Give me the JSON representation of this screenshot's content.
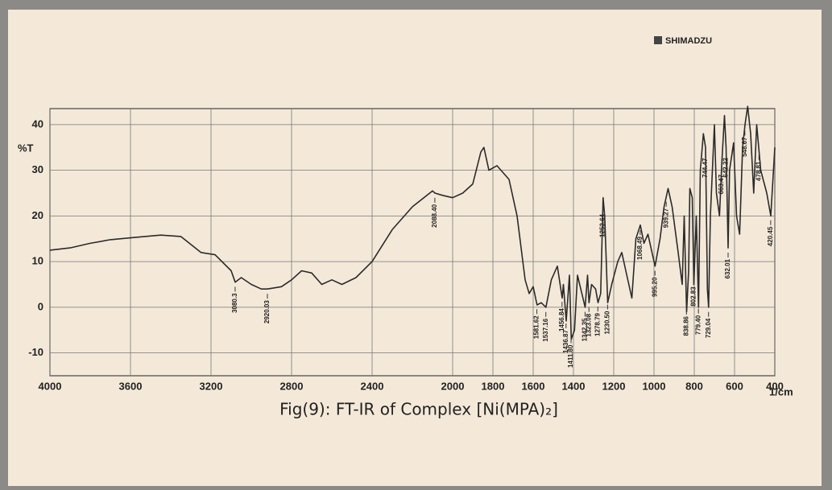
{
  "chart_data": {
    "type": "line",
    "brand": "SHIMADZU",
    "ylabel": "%T",
    "xlabel": "1/cm",
    "caption": "Fig(9): FT-IR of Complex [Ni(MPA)₂]",
    "color": "#2b2b2b",
    "grid": true,
    "xlim": [
      4000,
      400
    ],
    "ylim": [
      -15,
      43.5
    ],
    "xticks": [
      4000,
      3600,
      3200,
      2800,
      2400,
      2000,
      1800,
      1600,
      1400,
      1200,
      1000,
      800,
      600,
      400
    ],
    "yticks": [
      -10,
      0,
      10,
      20,
      30,
      40
    ],
    "x": [
      4000,
      3900,
      3800,
      3700,
      3600,
      3450,
      3350,
      3250,
      3180,
      3100,
      3080,
      3050,
      3000,
      2950,
      2920,
      2850,
      2800,
      2750,
      2700,
      2650,
      2600,
      2550,
      2480,
      2400,
      2300,
      2200,
      2100,
      2088,
      2050,
      2000,
      1950,
      1900,
      1860,
      1845,
      1820,
      1780,
      1720,
      1680,
      1640,
      1620,
      1600,
      1581,
      1560,
      1537,
      1510,
      1480,
      1456,
      1450,
      1436,
      1420,
      1411,
      1395,
      1380,
      1342,
      1330,
      1323,
      1310,
      1290,
      1278,
      1265,
      1253,
      1245,
      1230,
      1210,
      1180,
      1160,
      1140,
      1110,
      1090,
      1068,
      1050,
      1030,
      1010,
      995,
      970,
      950,
      930,
      910,
      880,
      860,
      850,
      838,
      828,
      822,
      810,
      802,
      790,
      779,
      770,
      755,
      744,
      735,
      729,
      720,
      700,
      690,
      675,
      663,
      650,
      642,
      632,
      625,
      605,
      590,
      575,
      560,
      548,
      535,
      520,
      505,
      490,
      478,
      470,
      440,
      420,
      400
    ],
    "values": [
      12.5,
      13,
      14,
      14.8,
      15.2,
      15.8,
      15.5,
      12,
      11.5,
      8,
      5.5,
      6.5,
      5,
      4,
      4,
      4.5,
      6,
      8,
      7.5,
      5,
      6,
      5,
      6.5,
      10,
      17,
      22,
      25.5,
      25,
      24.5,
      24,
      25,
      27,
      34,
      35,
      30,
      31,
      28,
      20,
      6,
      3,
      4.5,
      0.5,
      1,
      0,
      6,
      9,
      2,
      5,
      -3,
      7,
      -7,
      -5,
      7,
      0,
      7,
      1,
      5,
      4,
      1,
      3,
      24,
      20,
      1,
      5,
      10,
      12,
      8,
      2,
      15,
      18,
      14,
      16,
      12,
      9,
      15,
      22,
      26,
      22,
      12,
      5,
      20,
      -1,
      8,
      26,
      24,
      5,
      20,
      0,
      30,
      38,
      35,
      4,
      0,
      20,
      40,
      25,
      20,
      32,
      42,
      35,
      13,
      30,
      36,
      20,
      16,
      35,
      40,
      44,
      38,
      25,
      40,
      34,
      30,
      25,
      20,
      35
    ],
    "annotations": [
      {
        "x": 3080.3,
        "label": "3080.3"
      },
      {
        "x": 2920.03,
        "label": "2920.03"
      },
      {
        "x": 2088.4,
        "label": "2088.40"
      },
      {
        "x": 1581.62,
        "label": "1581.62"
      },
      {
        "x": 1537.16,
        "label": "1537.16"
      },
      {
        "x": 1456.84,
        "label": "1456.84"
      },
      {
        "x": 1436.87,
        "label": "1436.87"
      },
      {
        "x": 1411.8,
        "label": "1411.80"
      },
      {
        "x": 1342.35,
        "label": "1342.35"
      },
      {
        "x": 1323.08,
        "label": "1323.08"
      },
      {
        "x": 1278.79,
        "label": "1278.79"
      },
      {
        "x": 1253.64,
        "label": "1253.64"
      },
      {
        "x": 1230.5,
        "label": "1230.50"
      },
      {
        "x": 1068.49,
        "label": "1068.49"
      },
      {
        "x": 995.2,
        "label": "995.20"
      },
      {
        "x": 939.27,
        "label": "939.27"
      },
      {
        "x": 838.86,
        "label": "838.86"
      },
      {
        "x": 802.83,
        "label": "802.83"
      },
      {
        "x": 779.4,
        "label": "779.40"
      },
      {
        "x": 744.47,
        "label": "744.47"
      },
      {
        "x": 729.04,
        "label": "729.04"
      },
      {
        "x": 663.47,
        "label": "663.47"
      },
      {
        "x": 642.22,
        "label": "642.22"
      },
      {
        "x": 632.01,
        "label": "632.01"
      },
      {
        "x": 548.67,
        "label": "548.67"
      },
      {
        "x": 478.81,
        "label": "478.81"
      },
      {
        "x": 420.45,
        "label": "420.45"
      }
    ]
  }
}
